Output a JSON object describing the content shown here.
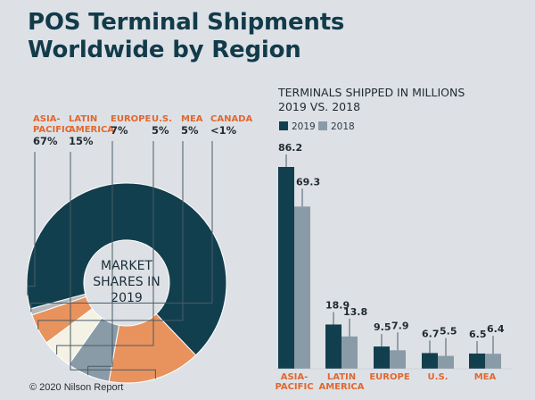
{
  "title_lines": [
    "POS Terminal Shipments",
    "Worldwide by Region"
  ],
  "copyright": "© 2020 Nilson Report",
  "colors": {
    "navy": "#123f4e",
    "orange": "#e8935e",
    "slate": "#8a9ba8",
    "cream": "#f4f2e4",
    "gray": "#b5b8bc",
    "accent_text": "#e2672f",
    "dark_text": "#1f2a30",
    "background": "#dde1e6"
  },
  "chart_data": [
    {
      "type": "pie",
      "title": "MARKET SHARES IN 2019",
      "center_label_lines": [
        "MARKET",
        "SHARES IN",
        "2019"
      ],
      "slices": [
        {
          "name_lines": [
            "ASIA-",
            "PACIFIC"
          ],
          "label": "67%",
          "value": 67,
          "color": "#123f4e"
        },
        {
          "name_lines": [
            "LATIN",
            "AMERICA"
          ],
          "label": "15%",
          "value": 15,
          "color": "#e8935e"
        },
        {
          "name_lines": [
            "EUROPE"
          ],
          "label": "7%",
          "value": 7,
          "color": "#8a9ba8"
        },
        {
          "name_lines": [
            "U.S."
          ],
          "label": "5%",
          "value": 5,
          "color": "#f4f2e4"
        },
        {
          "name_lines": [
            "MEA"
          ],
          "label": "5%",
          "value": 5,
          "color": "#e8935e"
        },
        {
          "name_lines": [
            "CANADA"
          ],
          "label": "<1%",
          "value": 1,
          "color": "#b5b8bc"
        }
      ]
    },
    {
      "type": "bar",
      "title_lines": [
        "TERMINALS SHIPPED IN MILLIONS",
        "2019 VS. 2018"
      ],
      "categories": [
        [
          "ASIA-",
          "PACIFIC"
        ],
        [
          "LATIN",
          "AMERICA"
        ],
        [
          "EUROPE"
        ],
        [
          "U.S."
        ],
        [
          "MEA"
        ]
      ],
      "series": [
        {
          "name": "2019",
          "values": [
            86.2,
            18.9,
            9.5,
            6.7,
            6.5
          ],
          "labels": [
            "86.2",
            "18.9",
            "9.5",
            "6.7",
            "6.5"
          ],
          "color": "#123f4e"
        },
        {
          "name": "2018",
          "values": [
            69.3,
            13.8,
            7.9,
            5.5,
            6.4
          ],
          "labels": [
            "69.3",
            "13.8",
            "7.9",
            "5.5",
            "6.4"
          ],
          "color": "#8a9ba8"
        }
      ],
      "ylim": [
        0,
        86.2
      ],
      "legend": "top-left"
    }
  ]
}
